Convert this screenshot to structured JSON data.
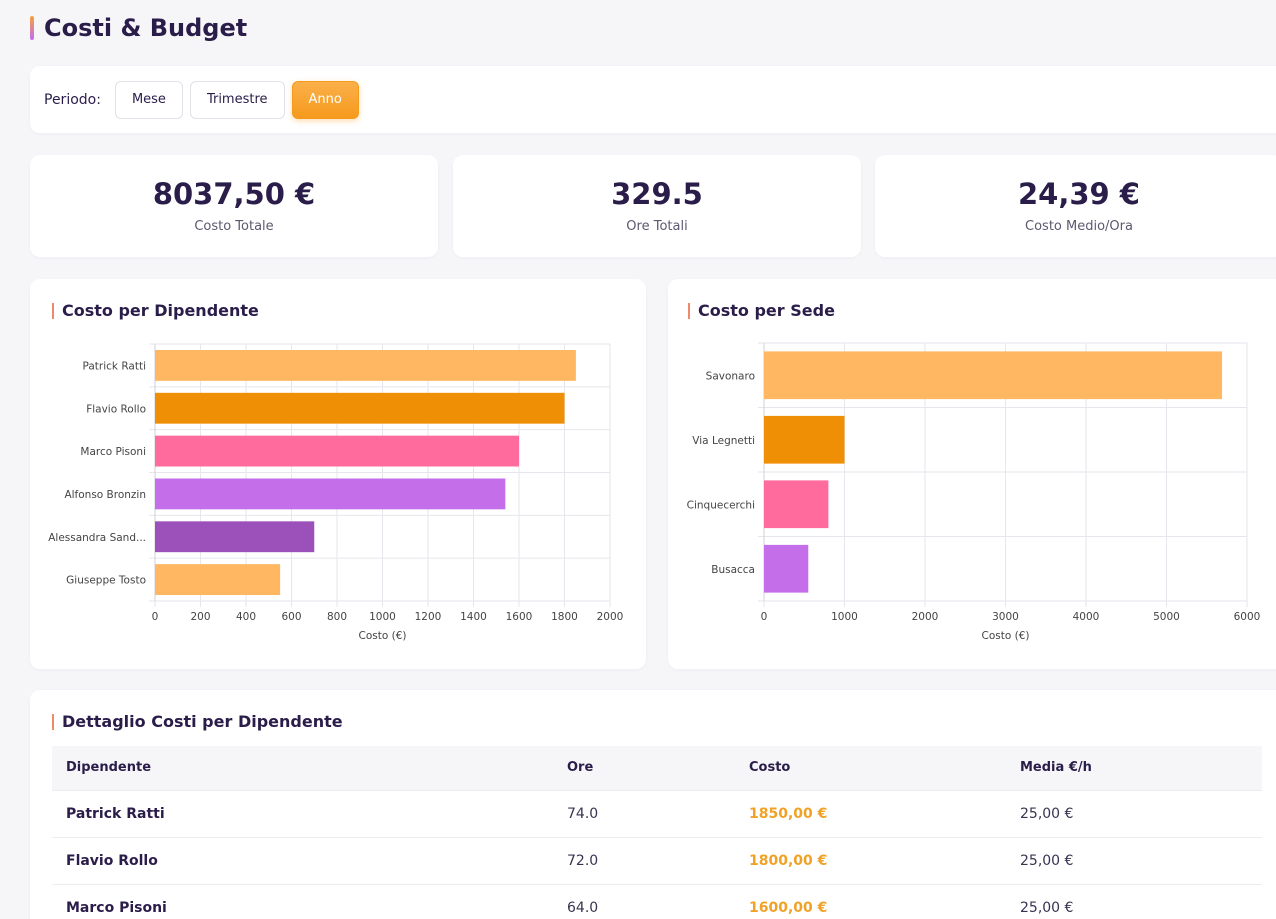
{
  "page": {
    "title": "Costi & Budget"
  },
  "period": {
    "label": "Periodo:",
    "options": [
      "Mese",
      "Trimestre",
      "Anno"
    ],
    "selected": "Anno"
  },
  "stats": [
    {
      "value": "8037,50 €",
      "label": "Costo Totale"
    },
    {
      "value": "329.5",
      "label": "Ore Totali"
    },
    {
      "value": "24,39 €",
      "label": "Costo Medio/Ora"
    }
  ],
  "colors": {
    "accent": "#f59a1d",
    "series": [
      "#ffb761",
      "#ef8f06",
      "#ff6b9d",
      "#c46fe9",
      "#9b51b9",
      "#ffb761"
    ]
  },
  "chart_data": [
    {
      "type": "bar",
      "orientation": "horizontal",
      "title": "Costo per Dipendente",
      "categories": [
        "Patrick Ratti",
        "Flavio Rollo",
        "Marco Pisoni",
        "Alfonso Bronzin",
        "Alessandra Sand...",
        "Giuseppe Tosto"
      ],
      "values": [
        1850,
        1800,
        1600,
        1540,
        700,
        550
      ],
      "xlabel": "Costo (€)",
      "xlim": [
        0,
        2000
      ],
      "xticks": [
        0,
        200,
        400,
        600,
        800,
        1000,
        1200,
        1400,
        1600,
        1800,
        2000
      ],
      "grid": true
    },
    {
      "type": "bar",
      "orientation": "horizontal",
      "title": "Costo per Sede",
      "categories": [
        "Savonaro",
        "Via Legnetti",
        "Cinquecerchi",
        "Busacca"
      ],
      "values": [
        5690,
        1000,
        800,
        550
      ],
      "xlabel": "Costo (€)",
      "xlim": [
        0,
        6000
      ],
      "xticks": [
        0,
        1000,
        2000,
        3000,
        4000,
        5000,
        6000
      ],
      "grid": true
    }
  ],
  "table": {
    "title": "Dettaglio Costi per Dipendente",
    "columns": [
      "Dipendente",
      "Ore",
      "Costo",
      "Media €/h"
    ],
    "rows": [
      [
        "Patrick Ratti",
        "74.0",
        "1850,00 €",
        "25,00 €"
      ],
      [
        "Flavio Rollo",
        "72.0",
        "1800,00 €",
        "25,00 €"
      ],
      [
        "Marco Pisoni",
        "64.0",
        "1600,00 €",
        "25,00 €"
      ]
    ]
  }
}
